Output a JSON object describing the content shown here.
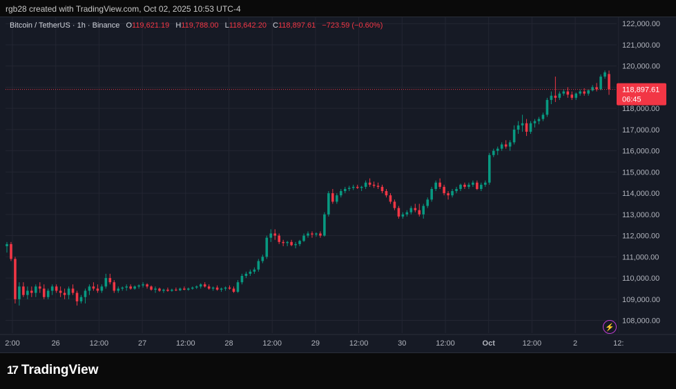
{
  "header": {
    "text": "rgb28 created with TradingView.com, Oct 02, 2025 10:53 UTC-4"
  },
  "legend": {
    "symbol": "Bitcoin / TetherUS · 1h · Binance",
    "o_label": "O",
    "o_value": "119,621.19",
    "h_label": "H",
    "h_value": "119,788.00",
    "l_label": "L",
    "l_value": "118,642.20",
    "c_label": "C",
    "c_value": "118,897.61",
    "change": "−723.59 (−0.60%)"
  },
  "price_tag": {
    "price": "118,897.61",
    "countdown": "06:45"
  },
  "footer": {
    "brand": "TradingView",
    "mark": "17"
  },
  "colors": {
    "up": "#089981",
    "down": "#f23645",
    "bg": "#161a25",
    "grid": "#232632"
  },
  "chart_data": {
    "type": "candlestick",
    "title": "Bitcoin / TetherUS · 1h · Binance",
    "ylim": [
      107400,
      122300
    ],
    "y_ticks": [
      108000,
      109000,
      110000,
      111000,
      112000,
      113000,
      114000,
      115000,
      116000,
      117000,
      118000,
      119000,
      120000,
      121000,
      122000
    ],
    "y_tick_labels": [
      "108,000.00",
      "109,000.00",
      "110,000.00",
      "111,000.00",
      "112,000.00",
      "113,000.00",
      "114,000.00",
      "115,000.00",
      "116,000.00",
      "117,000.00",
      "118,000.00",
      "119,000.00",
      "120,000.00",
      "121,000.00",
      "122,000.00"
    ],
    "x_tick_labels": [
      "2:00",
      "26",
      "12:00",
      "27",
      "12:00",
      "28",
      "12:00",
      "29",
      "12:00",
      "30",
      "12:00",
      "Oct",
      "12:00",
      "2",
      "12:"
    ],
    "last_price": 118897.61,
    "candles": [
      [
        111500,
        111700,
        111200,
        111600
      ],
      [
        111600,
        111700,
        110800,
        110900
      ],
      [
        110900,
        111000,
        108800,
        109000
      ],
      [
        109000,
        109800,
        108700,
        109600
      ],
      [
        109600,
        109800,
        109100,
        109200
      ],
      [
        109200,
        109600,
        109000,
        109400
      ],
      [
        109400,
        109600,
        109100,
        109300
      ],
      [
        109300,
        109700,
        109100,
        109600
      ],
      [
        109600,
        109800,
        109300,
        109500
      ],
      [
        109500,
        109700,
        109000,
        109100
      ],
      [
        109100,
        109500,
        109000,
        109400
      ],
      [
        109400,
        109700,
        109200,
        109600
      ],
      [
        109600,
        109700,
        109300,
        109400
      ],
      [
        109400,
        109600,
        109100,
        109300
      ],
      [
        109300,
        109500,
        109000,
        109200
      ],
      [
        109200,
        109600,
        109000,
        109500
      ],
      [
        109500,
        109700,
        109200,
        109300
      ],
      [
        109300,
        109400,
        108700,
        108900
      ],
      [
        108900,
        109200,
        108800,
        109100
      ],
      [
        109100,
        109500,
        108800,
        109400
      ],
      [
        109400,
        109700,
        109200,
        109600
      ],
      [
        109600,
        109800,
        109400,
        109500
      ],
      [
        109500,
        109700,
        109300,
        109400
      ],
      [
        109400,
        109700,
        109300,
        109600
      ],
      [
        109600,
        110200,
        109500,
        110000
      ],
      [
        110000,
        110200,
        109700,
        109800
      ],
      [
        109800,
        109900,
        109300,
        109400
      ],
      [
        109400,
        109600,
        109300,
        109500
      ],
      [
        109500,
        109600,
        109400,
        109550
      ],
      [
        109550,
        109700,
        109400,
        109600
      ],
      [
        109600,
        109700,
        109450,
        109500
      ],
      [
        109500,
        109650,
        109450,
        109600
      ],
      [
        109600,
        109700,
        109500,
        109650
      ],
      [
        109650,
        109800,
        109550,
        109700
      ],
      [
        109700,
        109750,
        109500,
        109600
      ],
      [
        109600,
        109650,
        109400,
        109450
      ],
      [
        109450,
        109600,
        109300,
        109500
      ],
      [
        109500,
        109550,
        109350,
        109400
      ],
      [
        109400,
        109500,
        109300,
        109450
      ],
      [
        109450,
        109550,
        109350,
        109400
      ],
      [
        109400,
        109500,
        109350,
        109450
      ],
      [
        109450,
        109550,
        109380,
        109420
      ],
      [
        109420,
        109550,
        109380,
        109500
      ],
      [
        109500,
        109600,
        109420,
        109450
      ],
      [
        109450,
        109550,
        109400,
        109500
      ],
      [
        109500,
        109600,
        109450,
        109550
      ],
      [
        109550,
        109650,
        109480,
        109600
      ],
      [
        109600,
        109750,
        109500,
        109700
      ],
      [
        109700,
        109800,
        109550,
        109600
      ],
      [
        109600,
        109700,
        109450,
        109500
      ],
      [
        109500,
        109600,
        109400,
        109550
      ],
      [
        109550,
        109650,
        109400,
        109450
      ],
      [
        109450,
        109550,
        109350,
        109500
      ],
      [
        109500,
        109600,
        109400,
        109550
      ],
      [
        109550,
        109650,
        109450,
        109500
      ],
      [
        109500,
        109600,
        109300,
        109350
      ],
      [
        109350,
        109900,
        109300,
        109800
      ],
      [
        109800,
        110200,
        109700,
        110100
      ],
      [
        110100,
        110300,
        110000,
        110200
      ],
      [
        110200,
        110400,
        110100,
        110300
      ],
      [
        110300,
        110500,
        110200,
        110400
      ],
      [
        110400,
        110900,
        110300,
        110800
      ],
      [
        110800,
        111100,
        110700,
        111000
      ],
      [
        111000,
        112000,
        110900,
        111900
      ],
      [
        111900,
        112300,
        111700,
        112100
      ],
      [
        112100,
        112300,
        111800,
        112000
      ],
      [
        112000,
        112100,
        111600,
        111700
      ],
      [
        111700,
        111800,
        111500,
        111650
      ],
      [
        111650,
        111750,
        111500,
        111700
      ],
      [
        111700,
        111800,
        111500,
        111550
      ],
      [
        111550,
        111700,
        111400,
        111600
      ],
      [
        111600,
        111800,
        111500,
        111750
      ],
      [
        111750,
        112100,
        111700,
        112000
      ],
      [
        112000,
        112200,
        111900,
        112100
      ],
      [
        112100,
        112200,
        111900,
        112050
      ],
      [
        112050,
        112150,
        111950,
        112100
      ],
      [
        112100,
        112200,
        111900,
        112000
      ],
      [
        112000,
        113100,
        111950,
        113000
      ],
      [
        113000,
        114100,
        112900,
        114000
      ],
      [
        114000,
        114200,
        113500,
        113600
      ],
      [
        113600,
        114000,
        113500,
        113900
      ],
      [
        113900,
        114200,
        113800,
        114100
      ],
      [
        114100,
        114300,
        114000,
        114200
      ],
      [
        114200,
        114350,
        114100,
        114250
      ],
      [
        114250,
        114400,
        114150,
        114300
      ],
      [
        114300,
        114400,
        114200,
        114250
      ],
      [
        114250,
        114350,
        114100,
        114300
      ],
      [
        114300,
        114600,
        114200,
        114500
      ],
      [
        114500,
        114700,
        114300,
        114400
      ],
      [
        114400,
        114550,
        114250,
        114350
      ],
      [
        114350,
        114500,
        114200,
        114300
      ],
      [
        114300,
        114400,
        114000,
        114100
      ],
      [
        114100,
        114200,
        113800,
        113900
      ],
      [
        113900,
        114000,
        113500,
        113600
      ],
      [
        113600,
        113700,
        113200,
        113300
      ],
      [
        113300,
        113400,
        112800,
        112900
      ],
      [
        112900,
        113100,
        112800,
        113000
      ],
      [
        113000,
        113200,
        112900,
        113100
      ],
      [
        113100,
        113400,
        113000,
        113300
      ],
      [
        113300,
        113500,
        113100,
        113200
      ],
      [
        113200,
        113500,
        112900,
        113000
      ],
      [
        113000,
        113500,
        112800,
        113400
      ],
      [
        113400,
        113800,
        113300,
        113700
      ],
      [
        113700,
        114300,
        113600,
        114200
      ],
      [
        114200,
        114600,
        114100,
        114500
      ],
      [
        114500,
        114700,
        114200,
        114300
      ],
      [
        114300,
        114400,
        113900,
        114000
      ],
      [
        114000,
        114100,
        113700,
        113900
      ],
      [
        113900,
        114200,
        113800,
        114100
      ],
      [
        114100,
        114300,
        114000,
        114200
      ],
      [
        114200,
        114450,
        114100,
        114400
      ],
      [
        114400,
        114500,
        114200,
        114300
      ],
      [
        114300,
        114500,
        114200,
        114400
      ],
      [
        114400,
        114600,
        114300,
        114500
      ],
      [
        114500,
        114600,
        114150,
        114200
      ],
      [
        114200,
        114500,
        114100,
        114400
      ],
      [
        114400,
        114600,
        114300,
        114500
      ],
      [
        114500,
        115900,
        114400,
        115800
      ],
      [
        115800,
        116100,
        115700,
        116000
      ],
      [
        116000,
        116200,
        115800,
        116100
      ],
      [
        116100,
        116400,
        116000,
        116300
      ],
      [
        116300,
        116500,
        116100,
        116200
      ],
      [
        116200,
        116500,
        116000,
        116400
      ],
      [
        116400,
        117200,
        116300,
        117000
      ],
      [
        117000,
        117400,
        116800,
        117200
      ],
      [
        117200,
        117700,
        116900,
        117300
      ],
      [
        117300,
        117500,
        116700,
        116900
      ],
      [
        116900,
        117400,
        116800,
        117300
      ],
      [
        117300,
        117500,
        117100,
        117400
      ],
      [
        117400,
        117600,
        117250,
        117500
      ],
      [
        117500,
        117800,
        117400,
        117700
      ],
      [
        117700,
        118500,
        117600,
        118400
      ],
      [
        118400,
        118800,
        118200,
        118600
      ],
      [
        118600,
        119500,
        118300,
        118500
      ],
      [
        118500,
        118800,
        118400,
        118700
      ],
      [
        118700,
        118900,
        118600,
        118800
      ],
      [
        118800,
        119000,
        118500,
        118650
      ],
      [
        118650,
        118800,
        118400,
        118500
      ],
      [
        118500,
        118750,
        118400,
        118700
      ],
      [
        118700,
        118900,
        118600,
        118800
      ],
      [
        118800,
        118950,
        118600,
        118700
      ],
      [
        118700,
        118900,
        118600,
        118850
      ],
      [
        118850,
        119100,
        118800,
        119000
      ],
      [
        119000,
        119200,
        118800,
        118900
      ],
      [
        118900,
        119600,
        118850,
        119500
      ],
      [
        119500,
        119788,
        119400,
        119700
      ],
      [
        119621,
        119788,
        118642,
        118898
      ]
    ]
  }
}
